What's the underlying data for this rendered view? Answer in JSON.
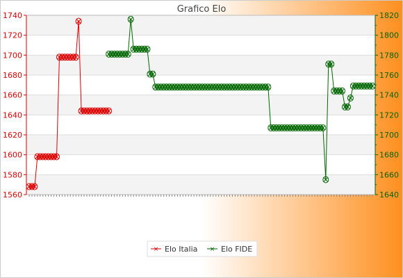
{
  "chart_data": {
    "type": "line",
    "title": "Grafico Elo",
    "grid": true,
    "legend_placement": "bottom-center",
    "y_left": {
      "range": [
        1560,
        1740
      ],
      "ticks": [
        1560,
        1580,
        1600,
        1620,
        1640,
        1660,
        1680,
        1700,
        1720,
        1740
      ]
    },
    "y_right": {
      "range": [
        1640,
        1820
      ],
      "ticks": [
        1640,
        1660,
        1680,
        1700,
        1720,
        1740,
        1760,
        1780,
        1800,
        1820
      ]
    },
    "x_count": 126,
    "series": [
      {
        "name": "Elo Italia",
        "axis": "left",
        "color": "#dd0000",
        "points": [
          [
            0,
            1568
          ],
          [
            1,
            1568
          ],
          [
            2,
            1568
          ],
          [
            3,
            1598
          ],
          [
            4,
            1598
          ],
          [
            5,
            1598
          ],
          [
            6,
            1598
          ],
          [
            7,
            1598
          ],
          [
            8,
            1598
          ],
          [
            9,
            1598
          ],
          [
            10,
            1598
          ],
          [
            11,
            1698
          ],
          [
            12,
            1698
          ],
          [
            13,
            1698
          ],
          [
            14,
            1698
          ],
          [
            15,
            1698
          ],
          [
            16,
            1698
          ],
          [
            17,
            1698
          ],
          [
            18,
            1734
          ],
          [
            19,
            1644
          ],
          [
            20,
            1644
          ],
          [
            21,
            1644
          ],
          [
            22,
            1644
          ],
          [
            23,
            1644
          ],
          [
            24,
            1644
          ],
          [
            25,
            1644
          ],
          [
            26,
            1644
          ],
          [
            27,
            1644
          ],
          [
            28,
            1644
          ],
          [
            29,
            1644
          ]
        ]
      },
      {
        "name": "Elo FIDE",
        "axis": "right",
        "color": "#006600",
        "points": [
          [
            29,
            1781
          ],
          [
            30,
            1781
          ],
          [
            31,
            1781
          ],
          [
            32,
            1781
          ],
          [
            33,
            1781
          ],
          [
            34,
            1781
          ],
          [
            35,
            1781
          ],
          [
            36,
            1781
          ],
          [
            37,
            1816
          ],
          [
            38,
            1786
          ],
          [
            39,
            1786
          ],
          [
            40,
            1786
          ],
          [
            41,
            1786
          ],
          [
            42,
            1786
          ],
          [
            43,
            1786
          ],
          [
            44,
            1761
          ],
          [
            45,
            1761
          ],
          [
            46,
            1748
          ],
          [
            47,
            1748
          ],
          [
            48,
            1748
          ],
          [
            49,
            1748
          ],
          [
            50,
            1748
          ],
          [
            51,
            1748
          ],
          [
            52,
            1748
          ],
          [
            53,
            1748
          ],
          [
            54,
            1748
          ],
          [
            55,
            1748
          ],
          [
            56,
            1748
          ],
          [
            57,
            1748
          ],
          [
            58,
            1748
          ],
          [
            59,
            1748
          ],
          [
            60,
            1748
          ],
          [
            61,
            1748
          ],
          [
            62,
            1748
          ],
          [
            63,
            1748
          ],
          [
            64,
            1748
          ],
          [
            65,
            1748
          ],
          [
            66,
            1748
          ],
          [
            67,
            1748
          ],
          [
            68,
            1748
          ],
          [
            69,
            1748
          ],
          [
            70,
            1748
          ],
          [
            71,
            1748
          ],
          [
            72,
            1748
          ],
          [
            73,
            1748
          ],
          [
            74,
            1748
          ],
          [
            75,
            1748
          ],
          [
            76,
            1748
          ],
          [
            77,
            1748
          ],
          [
            78,
            1748
          ],
          [
            79,
            1748
          ],
          [
            80,
            1748
          ],
          [
            81,
            1748
          ],
          [
            82,
            1748
          ],
          [
            83,
            1748
          ],
          [
            84,
            1748
          ],
          [
            85,
            1748
          ],
          [
            86,
            1748
          ],
          [
            87,
            1748
          ],
          [
            88,
            1707
          ],
          [
            89,
            1707
          ],
          [
            90,
            1707
          ],
          [
            91,
            1707
          ],
          [
            92,
            1707
          ],
          [
            93,
            1707
          ],
          [
            94,
            1707
          ],
          [
            95,
            1707
          ],
          [
            96,
            1707
          ],
          [
            97,
            1707
          ],
          [
            98,
            1707
          ],
          [
            99,
            1707
          ],
          [
            100,
            1707
          ],
          [
            101,
            1707
          ],
          [
            102,
            1707
          ],
          [
            103,
            1707
          ],
          [
            104,
            1707
          ],
          [
            105,
            1707
          ],
          [
            106,
            1707
          ],
          [
            107,
            1707
          ],
          [
            108,
            1655
          ],
          [
            109,
            1771
          ],
          [
            110,
            1771
          ],
          [
            111,
            1744
          ],
          [
            112,
            1744
          ],
          [
            113,
            1744
          ],
          [
            114,
            1744
          ],
          [
            115,
            1728
          ],
          [
            116,
            1728
          ],
          [
            117,
            1737
          ],
          [
            118,
            1749
          ],
          [
            119,
            1749
          ],
          [
            120,
            1749
          ],
          [
            121,
            1749
          ],
          [
            122,
            1749
          ],
          [
            123,
            1749
          ],
          [
            124,
            1749
          ],
          [
            125,
            1749
          ]
        ]
      }
    ]
  }
}
